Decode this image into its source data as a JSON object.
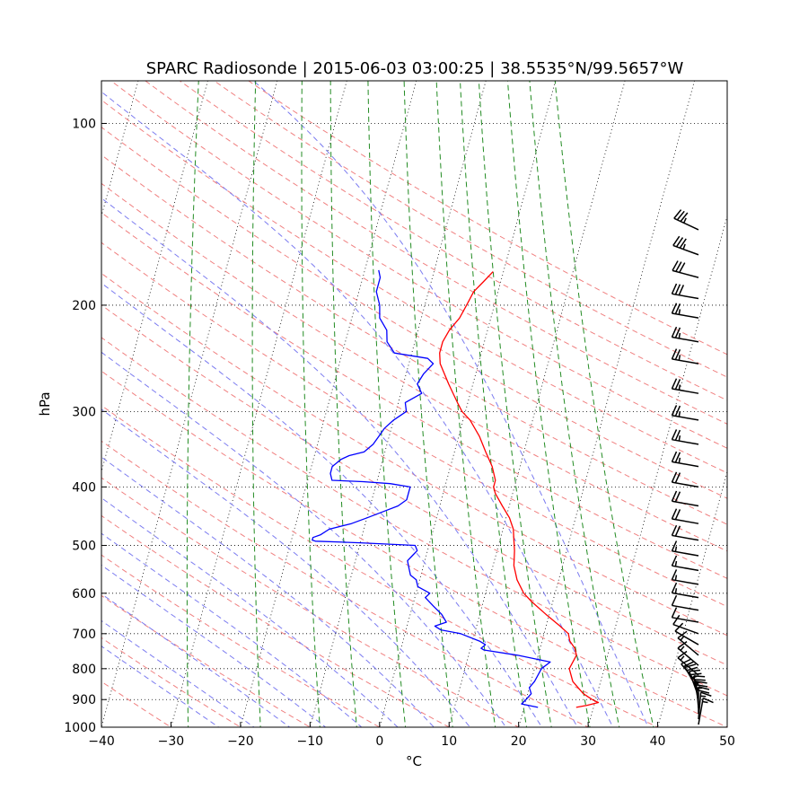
{
  "chart_data": {
    "type": "line",
    "subtype": "skew-T log-P diagram",
    "title": "SPARC Radiosonde | 2015-06-03 03:00:25 | 38.5535°N/99.5657°W",
    "xlabel": "°C",
    "ylabel": "hPa",
    "xlim": [
      -40,
      50
    ],
    "ylim_hpa": [
      1000,
      85
    ],
    "y_scale": "log",
    "grid": true,
    "x_ticks": [
      -40,
      -30,
      -20,
      -10,
      0,
      10,
      20,
      30,
      40,
      50
    ],
    "x_tick_labels": [
      "−40",
      "−30",
      "−20",
      "−10",
      "0",
      "10",
      "20",
      "30",
      "40",
      "50"
    ],
    "y_ticks": [
      100,
      200,
      300,
      400,
      500,
      600,
      700,
      800,
      900,
      1000
    ],
    "y_tick_labels": [
      "100",
      "200",
      "300",
      "400",
      "500",
      "600",
      "700",
      "800",
      "900",
      "1000"
    ],
    "colors": {
      "temperature": "#ff0000",
      "dewpoint": "#0000ff",
      "dry_adiabats": "#f08080",
      "moist_adiabats": "#7b7bf0",
      "mixing_ratio": "#228b22",
      "isotherms": "#000000",
      "barbs": "#000000"
    },
    "series": [
      {
        "key": "temperature",
        "pressure": [
          927,
          920,
          910,
          900,
          880,
          860,
          840,
          800,
          760,
          740,
          720,
          700,
          680,
          650,
          620,
          600,
          570,
          540,
          510,
          490,
          470,
          450,
          430,
          410,
          400,
          390,
          370,
          350,
          330,
          310,
          300,
          290,
          270,
          250,
          240,
          230,
          220,
          210,
          200,
          190,
          183,
          176
        ],
        "values": [
          27.5,
          29.0,
          30.5,
          29.5,
          28.0,
          27.0,
          26.0,
          25.0,
          25.5,
          25.0,
          24.0,
          23.5,
          22.0,
          19.5,
          17.0,
          15.5,
          14.0,
          13.0,
          12.5,
          12.0,
          11.5,
          10.5,
          9.0,
          7.5,
          7.0,
          7.0,
          6.0,
          4.5,
          3.0,
          1.0,
          -0.5,
          -1.5,
          -3.5,
          -5.5,
          -6.0,
          -6.0,
          -5.5,
          -4.5,
          -4.0,
          -3.5,
          -2.5,
          -1.5
        ]
      },
      {
        "key": "dewpoint",
        "pressure": [
          927,
          915,
          900,
          880,
          860,
          840,
          800,
          780,
          760,
          745,
          740,
          730,
          720,
          700,
          690,
          680,
          670,
          660,
          650,
          630,
          610,
          600,
          585,
          570,
          560,
          545,
          530,
          520,
          510,
          500,
          495,
          492,
          490,
          485,
          480,
          470,
          460,
          450,
          440,
          430,
          420,
          410,
          400,
          395,
          392,
          390,
          380,
          370,
          360,
          355,
          350,
          340,
          330,
          320,
          310,
          300,
          290,
          280,
          270,
          260,
          250,
          245,
          240,
          230,
          220,
          210,
          200,
          190,
          180,
          175
        ],
        "values": [
          22.0,
          19.5,
          20.0,
          20.5,
          20.0,
          20.5,
          21.0,
          22.0,
          17.0,
          12.0,
          11.5,
          12.0,
          11.0,
          8.0,
          5.0,
          4.0,
          5.5,
          5.0,
          4.5,
          3.0,
          1.5,
          2.0,
          0.0,
          -0.5,
          -1.5,
          -2.0,
          -2.5,
          -2.0,
          -1.5,
          -2.0,
          -10.0,
          -16.5,
          -17.0,
          -17.0,
          -16.0,
          -15.0,
          -12.0,
          -10.0,
          -8.0,
          -6.0,
          -5.0,
          -5.0,
          -5.0,
          -8.0,
          -12.0,
          -16.5,
          -17.0,
          -17.0,
          -16.0,
          -15.0,
          -13.0,
          -12.0,
          -11.5,
          -11.0,
          -10.0,
          -8.5,
          -9.0,
          -7.0,
          -8.0,
          -7.5,
          -6.5,
          -7.5,
          -12.5,
          -14.0,
          -14.5,
          -16.0,
          -16.5,
          -17.5,
          -17.5,
          -18.0
        ]
      }
    ],
    "wind_barbs": {
      "column_x_celsius": 47,
      "pressure": [
        990,
        970,
        950,
        930,
        910,
        890,
        870,
        850,
        820,
        790,
        760,
        730,
        700,
        670,
        640,
        610,
        580,
        550,
        520,
        490,
        460,
        430,
        400,
        370,
        340,
        310,
        280,
        250,
        230,
        210,
        195,
        180,
        165,
        150
      ],
      "speed_kt": [
        15,
        15,
        20,
        25,
        25,
        25,
        20,
        20,
        15,
        15,
        15,
        10,
        10,
        10,
        10,
        15,
        15,
        15,
        15,
        20,
        20,
        20,
        20,
        25,
        25,
        25,
        25,
        25,
        25,
        25,
        30,
        30,
        35,
        35
      ],
      "direction_deg": [
        170,
        175,
        180,
        185,
        190,
        200,
        210,
        220,
        230,
        230,
        230,
        240,
        250,
        260,
        260,
        260,
        260,
        260,
        260,
        260,
        260,
        260,
        260,
        260,
        260,
        260,
        260,
        260,
        260,
        260,
        260,
        255,
        250,
        245
      ]
    }
  }
}
